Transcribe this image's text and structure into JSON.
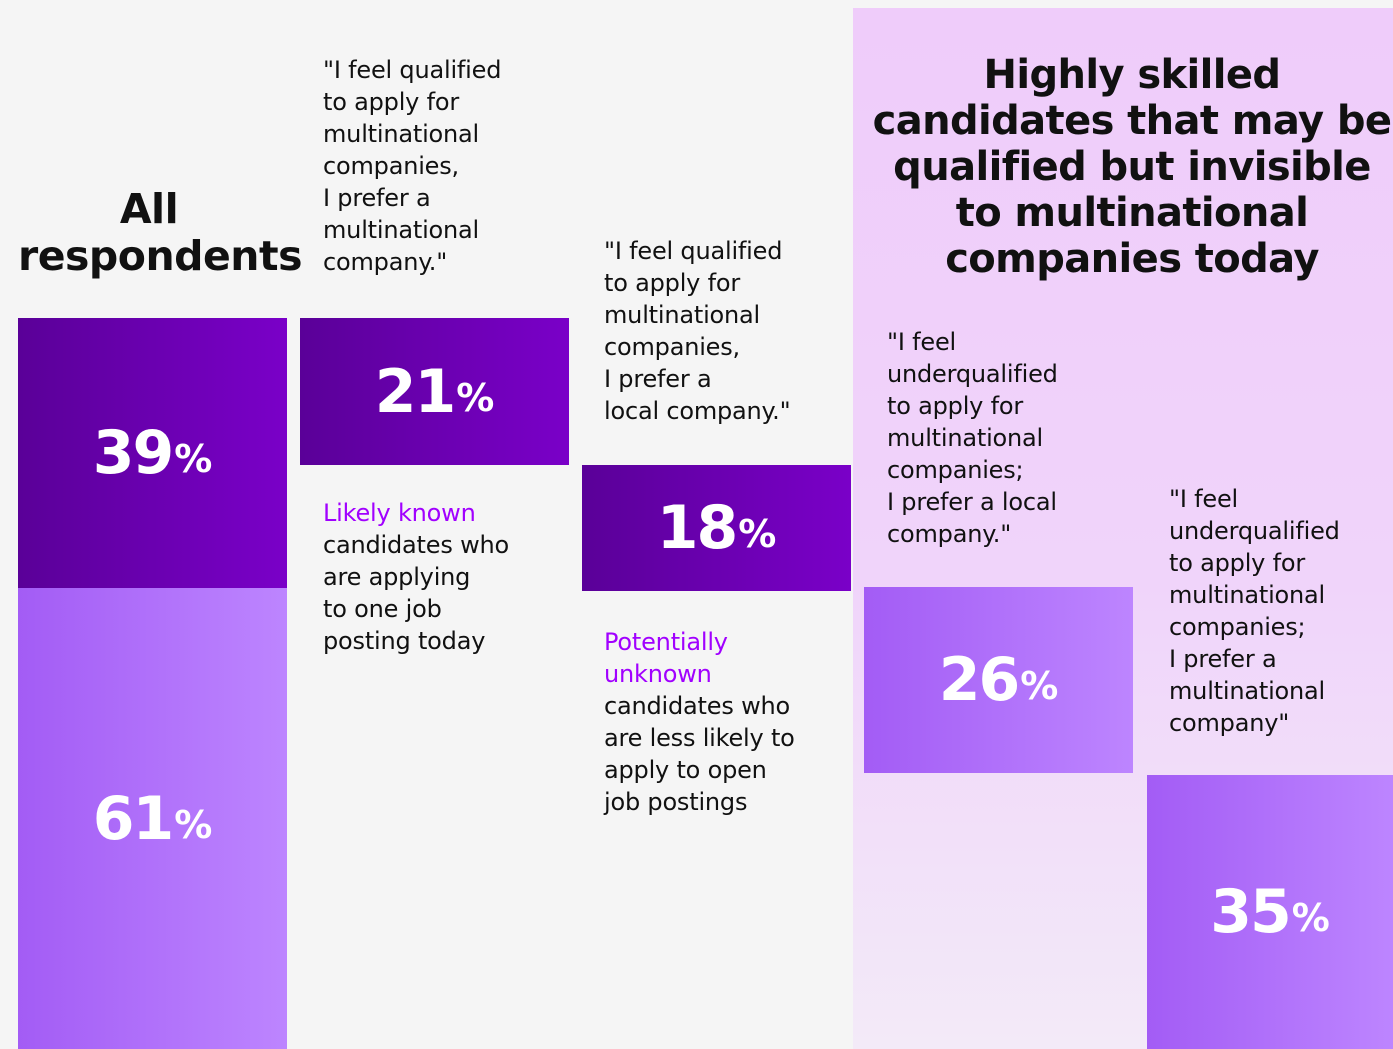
{
  "headings": {
    "all_respondents": "All\nrespondents",
    "highly_skilled": "Highly skilled candidates that may be qualified but invisible to multinational companies today"
  },
  "quotes": {
    "q1": "\"I feel qualified\nto apply for\nmultinational\ncompanies,\nI prefer a\nmultinational\ncompany.\"",
    "q2": "\"I feel qualified\nto apply for\nmultinational\ncompanies,\nI prefer a\nlocal company.\"",
    "q3": "\"I feel\nunderqualified\nto apply for\nmultinational\ncompanies;\nI prefer a local\ncompany.\"",
    "q4": "\"I feel\nunderqualified\nto apply for\nmultinational\ncompanies;\nI prefer a\nmultinational\ncompany\""
  },
  "descriptions": {
    "likely_known": {
      "accent": "Likely known",
      "rest": "candidates who\nare applying\nto one job\nposting today"
    },
    "potentially_unknown": {
      "accent": "Potentially\nunknown",
      "rest": "candidates who\nare less likely to\napply to open\njob postings"
    }
  },
  "percent_sign": "%",
  "chart_data": {
    "type": "bar",
    "unit": "%",
    "bars": [
      {
        "value": 39
      },
      {
        "value": 61
      },
      {
        "value": 21
      },
      {
        "value": 18
      },
      {
        "value": 26
      },
      {
        "value": 35
      }
    ]
  },
  "colors": {
    "accent": "#a100ff",
    "dark_bar_start": "#5a0098",
    "dark_bar_end": "#7a00c8",
    "light_bar_start": "#a35cf5",
    "light_bar_end": "#bd85ff",
    "highlight_panel": "#efccfa"
  }
}
